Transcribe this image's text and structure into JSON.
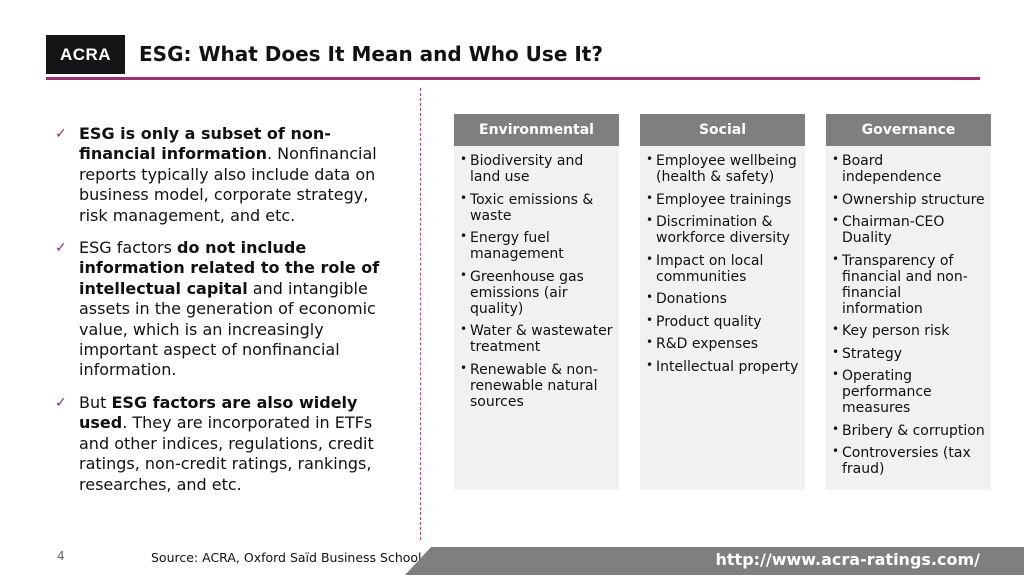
{
  "header": {
    "logo_text": "ACRA",
    "title": "ESG: What Does It Mean and Who Use It?"
  },
  "left_points": [
    {
      "parts": [
        {
          "text": "ESG is only a subset of non-financial information",
          "bold": true
        },
        {
          "text": ". Nonfinancial reports typically also include data on business model, corporate strategy, risk management, and etc.",
          "bold": false
        }
      ]
    },
    {
      "parts": [
        {
          "text": "ESG factors ",
          "bold": false
        },
        {
          "text": "do not include information related to the role of intellectual capital",
          "bold": true
        },
        {
          "text": " and intangible assets in the generation of economic value, which is an increasingly important aspect of nonfinancial information.",
          "bold": false
        }
      ]
    },
    {
      "parts": [
        {
          "text": "But ",
          "bold": false
        },
        {
          "text": "ESG factors are also widely used",
          "bold": true
        },
        {
          "text": ". They are incorporated in ETFs and other indices, regulations, credit ratings, non-credit ratings, rankings, researches, and etc.",
          "bold": false
        }
      ]
    }
  ],
  "columns": [
    {
      "title": "Environmental",
      "items": [
        "Biodiversity and land use",
        "Toxic emissions & waste",
        "Energy fuel management",
        "Greenhouse gas emissions (air quality)",
        "Water & wastewater treatment",
        "Renewable & non-renewable natural sources"
      ]
    },
    {
      "title": "Social",
      "items": [
        "Employee wellbeing (health & safety)",
        "Employee trainings",
        "Discrimination & workforce diversity",
        "Impact on local communities",
        "Donations",
        "Product quality",
        "R&D expenses",
        "Intellectual property"
      ]
    },
    {
      "title": "Governance",
      "items": [
        "Board independence",
        "Ownership structure",
        "Chairman-CEO Duality",
        "Transparency of financial and non-financial information",
        "Key person risk",
        "Strategy",
        "Operating performance measures",
        "Bribery & corruption",
        "Controversies (tax fraud)"
      ]
    }
  ],
  "footer": {
    "page_number": "4",
    "source": "Source: ACRA, Oxford Saïd Business School",
    "url": "http://www.acra-ratings.com/"
  },
  "colors": {
    "accent": "#9b2f6f",
    "header_gray": "#7f7f7f",
    "column_bg": "#f1f1f1"
  }
}
